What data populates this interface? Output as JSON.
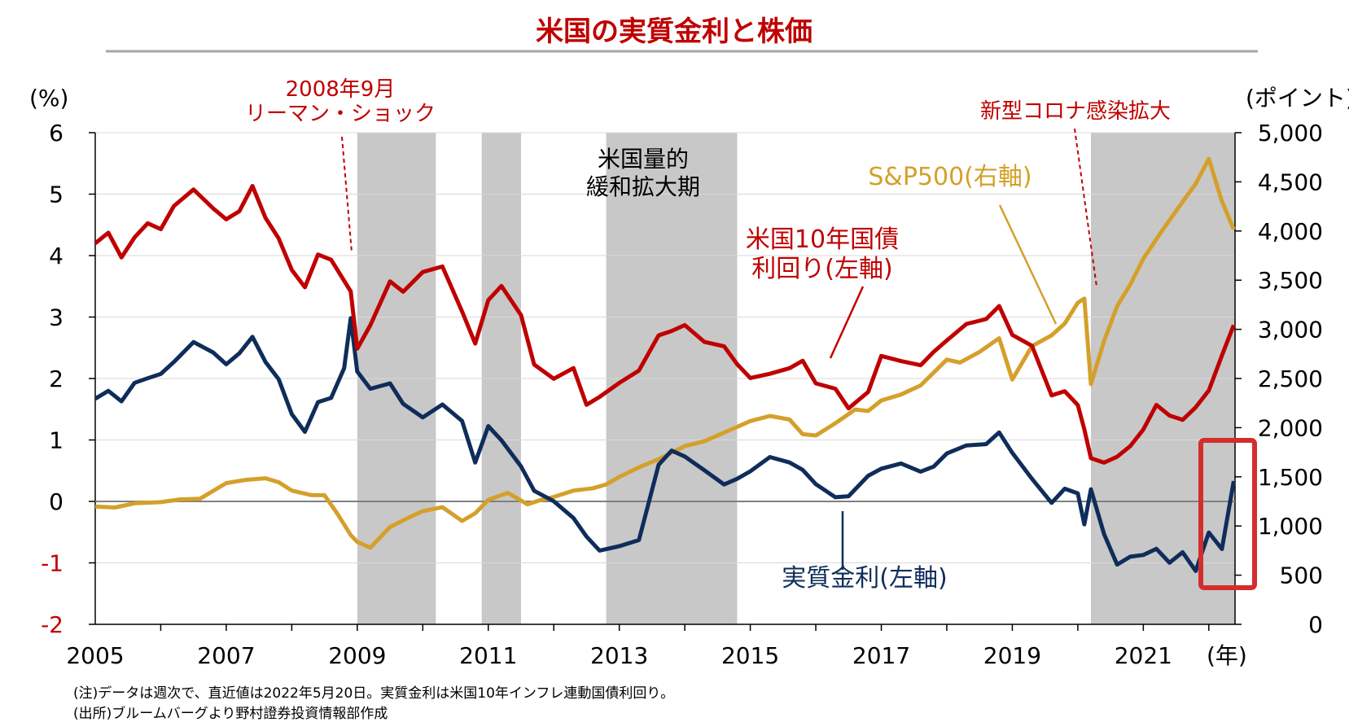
{
  "colors": {
    "red": "#C00000",
    "navy": "#0F2D5A",
    "gold": "#D4A02A",
    "shade": "#C8C8C8",
    "axis": "#000000",
    "zero_line": "#808080",
    "title_rule": "#A6A6A6"
  },
  "chart_data": {
    "type": "line",
    "title": "米国の実質金利と株価",
    "left_axis": {
      "unit": "(%)",
      "range": [
        -2,
        6
      ],
      "ticks": [
        "6",
        "5",
        "4",
        "3",
        "2",
        "1",
        "0",
        "-1",
        "-2"
      ],
      "negative_tick_color": "#C00000"
    },
    "right_axis": {
      "unit": "(ポイント)",
      "range": [
        0,
        5000
      ],
      "ticks": [
        "5,000",
        "4,500",
        "4,000",
        "3,500",
        "3,000",
        "2,500",
        "2,000",
        "1,500",
        "1,000",
        "500",
        "0"
      ]
    },
    "x_axis": {
      "range": [
        2005.0,
        2022.4
      ],
      "ticks": [
        "2005",
        "2007",
        "2009",
        "2011",
        "2013",
        "2015",
        "2017",
        "2019",
        "2021"
      ],
      "unit": "(年)"
    },
    "shaded_periods": [
      [
        2009.0,
        2010.2
      ],
      [
        2010.9,
        2011.5
      ],
      [
        2012.8,
        2014.8
      ],
      [
        2020.2,
        2022.4
      ]
    ],
    "shaded_label": "米国量的\n緩和拡大期",
    "series": [
      {
        "name": "米国10年国債\n利回り(左軸)",
        "axis": "left",
        "color": "#C00000",
        "x": [
          2005.0,
          2005.2,
          2005.4,
          2005.6,
          2005.8,
          2006.0,
          2006.2,
          2006.5,
          2006.8,
          2007.0,
          2007.2,
          2007.4,
          2007.6,
          2007.8,
          2008.0,
          2008.2,
          2008.4,
          2008.6,
          2008.9,
          2009.0,
          2009.2,
          2009.5,
          2009.7,
          2010.0,
          2010.3,
          2010.6,
          2010.8,
          2011.0,
          2011.2,
          2011.5,
          2011.7,
          2012.0,
          2012.3,
          2012.5,
          2012.7,
          2013.0,
          2013.3,
          2013.6,
          2013.8,
          2014.0,
          2014.3,
          2014.6,
          2014.8,
          2015.0,
          2015.3,
          2015.6,
          2015.8,
          2016.0,
          2016.3,
          2016.5,
          2016.8,
          2017.0,
          2017.3,
          2017.6,
          2017.8,
          2018.0,
          2018.3,
          2018.6,
          2018.8,
          2019.0,
          2019.3,
          2019.6,
          2019.8,
          2020.0,
          2020.1,
          2020.2,
          2020.4,
          2020.6,
          2020.8,
          2021.0,
          2021.2,
          2021.4,
          2021.6,
          2021.8,
          2022.0,
          2022.2,
          2022.38
        ],
        "y": [
          4.2,
          4.4,
          4.0,
          4.3,
          4.5,
          4.4,
          4.8,
          5.1,
          4.8,
          4.6,
          4.7,
          5.1,
          4.6,
          4.3,
          3.8,
          3.5,
          4.0,
          3.9,
          3.4,
          2.5,
          2.9,
          3.6,
          3.4,
          3.7,
          3.8,
          3.1,
          2.6,
          3.3,
          3.5,
          3.0,
          2.2,
          2.0,
          2.2,
          1.6,
          1.7,
          1.9,
          2.1,
          2.7,
          2.8,
          2.9,
          2.6,
          2.5,
          2.2,
          2.0,
          2.1,
          2.2,
          2.3,
          1.9,
          1.8,
          1.5,
          1.8,
          2.4,
          2.3,
          2.2,
          2.4,
          2.6,
          2.9,
          3.0,
          3.2,
          2.7,
          2.5,
          1.7,
          1.8,
          1.6,
          1.2,
          0.7,
          0.6,
          0.7,
          0.9,
          1.2,
          1.6,
          1.4,
          1.3,
          1.5,
          1.8,
          2.4,
          2.9
        ]
      },
      {
        "name": "実質金利(左軸)",
        "axis": "left",
        "color": "#0F2D5A",
        "x": [
          2005.0,
          2005.2,
          2005.4,
          2005.6,
          2005.8,
          2006.0,
          2006.2,
          2006.5,
          2006.8,
          2007.0,
          2007.2,
          2007.4,
          2007.6,
          2007.8,
          2008.0,
          2008.2,
          2008.4,
          2008.6,
          2008.8,
          2008.9,
          2009.0,
          2009.2,
          2009.5,
          2009.7,
          2010.0,
          2010.3,
          2010.6,
          2010.8,
          2011.0,
          2011.2,
          2011.5,
          2011.7,
          2012.0,
          2012.3,
          2012.5,
          2012.7,
          2013.0,
          2013.3,
          2013.6,
          2013.8,
          2014.0,
          2014.3,
          2014.6,
          2014.8,
          2015.0,
          2015.3,
          2015.6,
          2015.8,
          2016.0,
          2016.3,
          2016.5,
          2016.8,
          2017.0,
          2017.3,
          2017.6,
          2017.8,
          2018.0,
          2018.3,
          2018.6,
          2018.8,
          2019.0,
          2019.3,
          2019.6,
          2019.8,
          2020.0,
          2020.1,
          2020.2,
          2020.4,
          2020.6,
          2020.8,
          2021.0,
          2021.2,
          2021.4,
          2021.6,
          2021.8,
          2022.0,
          2022.2,
          2022.38
        ],
        "y": [
          1.7,
          1.8,
          1.6,
          1.9,
          2.0,
          2.1,
          2.3,
          2.6,
          2.4,
          2.2,
          2.4,
          2.7,
          2.3,
          2.0,
          1.4,
          1.1,
          1.6,
          1.7,
          2.2,
          3.0,
          2.1,
          1.8,
          1.9,
          1.6,
          1.4,
          1.6,
          1.3,
          0.6,
          1.2,
          1.0,
          0.6,
          0.2,
          0.0,
          -0.3,
          -0.6,
          -0.8,
          -0.7,
          -0.6,
          0.6,
          0.8,
          0.7,
          0.5,
          0.3,
          0.4,
          0.5,
          0.7,
          0.6,
          0.5,
          0.3,
          0.1,
          0.1,
          0.4,
          0.5,
          0.6,
          0.5,
          0.6,
          0.8,
          0.9,
          0.9,
          1.1,
          0.8,
          0.4,
          0.0,
          0.2,
          0.1,
          -0.4,
          0.2,
          -0.5,
          -1.0,
          -0.9,
          -0.9,
          -0.8,
          -1.0,
          -0.8,
          -1.1,
          -0.5,
          -0.8,
          0.3
        ]
      },
      {
        "name": "S&P500(右軸)",
        "axis": "right",
        "color": "#D4A02A",
        "x": [
          2005.0,
          2005.3,
          2005.6,
          2006.0,
          2006.3,
          2006.6,
          2007.0,
          2007.3,
          2007.6,
          2007.8,
          2008.0,
          2008.3,
          2008.5,
          2008.7,
          2008.9,
          2009.0,
          2009.2,
          2009.5,
          2009.8,
          2010.0,
          2010.3,
          2010.6,
          2010.8,
          2011.0,
          2011.3,
          2011.6,
          2011.8,
          2012.0,
          2012.3,
          2012.6,
          2012.8,
          2013.0,
          2013.3,
          2013.6,
          2014.0,
          2014.3,
          2014.6,
          2015.0,
          2015.3,
          2015.6,
          2015.8,
          2016.0,
          2016.3,
          2016.6,
          2016.8,
          2017.0,
          2017.3,
          2017.6,
          2018.0,
          2018.2,
          2018.5,
          2018.8,
          2019.0,
          2019.3,
          2019.6,
          2019.8,
          2020.0,
          2020.1,
          2020.2,
          2020.4,
          2020.6,
          2020.8,
          2021.0,
          2021.3,
          2021.6,
          2021.8,
          2022.0,
          2022.2,
          2022.38
        ],
        "y": [
          1180,
          1170,
          1230,
          1260,
          1290,
          1280,
          1420,
          1450,
          1480,
          1460,
          1380,
          1320,
          1300,
          1100,
          900,
          850,
          800,
          1000,
          1080,
          1130,
          1180,
          1060,
          1150,
          1280,
          1330,
          1200,
          1250,
          1300,
          1380,
          1400,
          1420,
          1480,
          1580,
          1680,
          1830,
          1880,
          1950,
          2050,
          2100,
          2080,
          1950,
          1940,
          2050,
          2170,
          2150,
          2270,
          2350,
          2450,
          2700,
          2650,
          2750,
          2900,
          2500,
          2850,
          2950,
          3050,
          3250,
          3300,
          2450,
          2900,
          3250,
          3450,
          3700,
          4000,
          4300,
          4500,
          4750,
          4300,
          4000
        ]
      }
    ],
    "annotations": {
      "lehman": "2008年9月\nリーマン・ショック",
      "corona": "新型コロナ感染拡大",
      "treasury_label": "米国10年国債\n利回り(左軸)",
      "real_label": "実質金利(左軸)",
      "sp_label": "S&P500(右軸)"
    },
    "grid": "horizontal",
    "legend": "inline"
  },
  "notes": [
    "(注)データは週次で、直近値は2022年5月20日。実質金利は米国10年インフレ連動国債利回り。",
    "(出所)ブルームバーグより野村證券投資情報部作成"
  ]
}
